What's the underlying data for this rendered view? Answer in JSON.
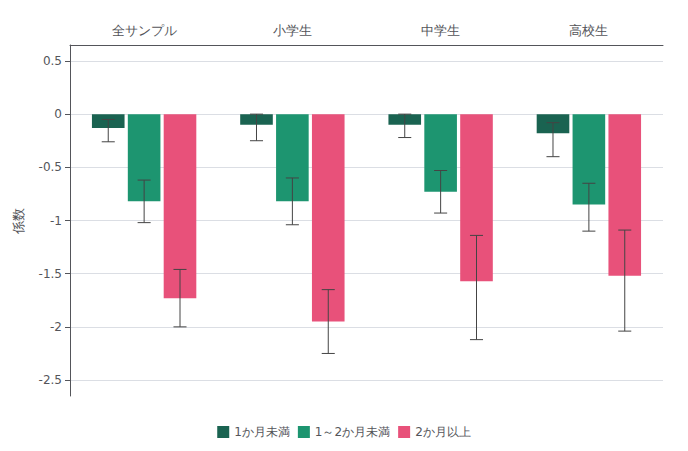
{
  "chart_data": {
    "type": "bar",
    "categories": [
      "全サンプル",
      "小学生",
      "中学生",
      "高校生"
    ],
    "series": [
      {
        "name": "1か月未満",
        "color": "#1a6351",
        "values": [
          -0.13,
          -0.1,
          -0.1,
          -0.18
        ],
        "yerr_low": [
          0.13,
          0.15,
          0.12,
          0.22
        ],
        "yerr_high": [
          0.08,
          0.1,
          0.1,
          0.1
        ]
      },
      {
        "name": "1～2か月未満",
        "color": "#1d9570",
        "values": [
          -0.82,
          -0.82,
          -0.73,
          -0.85
        ],
        "yerr_low": [
          0.2,
          0.22,
          0.2,
          0.25
        ],
        "yerr_high": [
          0.2,
          0.22,
          0.2,
          0.2
        ]
      },
      {
        "name": "2か月以上",
        "color": "#e8517a",
        "values": [
          -1.73,
          -1.95,
          -1.57,
          -1.52
        ],
        "yerr_low": [
          0.27,
          0.3,
          0.55,
          0.52
        ],
        "yerr_high": [
          0.27,
          0.3,
          0.43,
          0.43
        ]
      }
    ],
    "ylabel": "係数",
    "ylim": [
      -2.65,
      0.65
    ],
    "yticks": [
      0.5,
      0,
      -0.5,
      -1,
      -1.5,
      -2,
      -2.5
    ],
    "grid": true,
    "legend": "bottom"
  }
}
